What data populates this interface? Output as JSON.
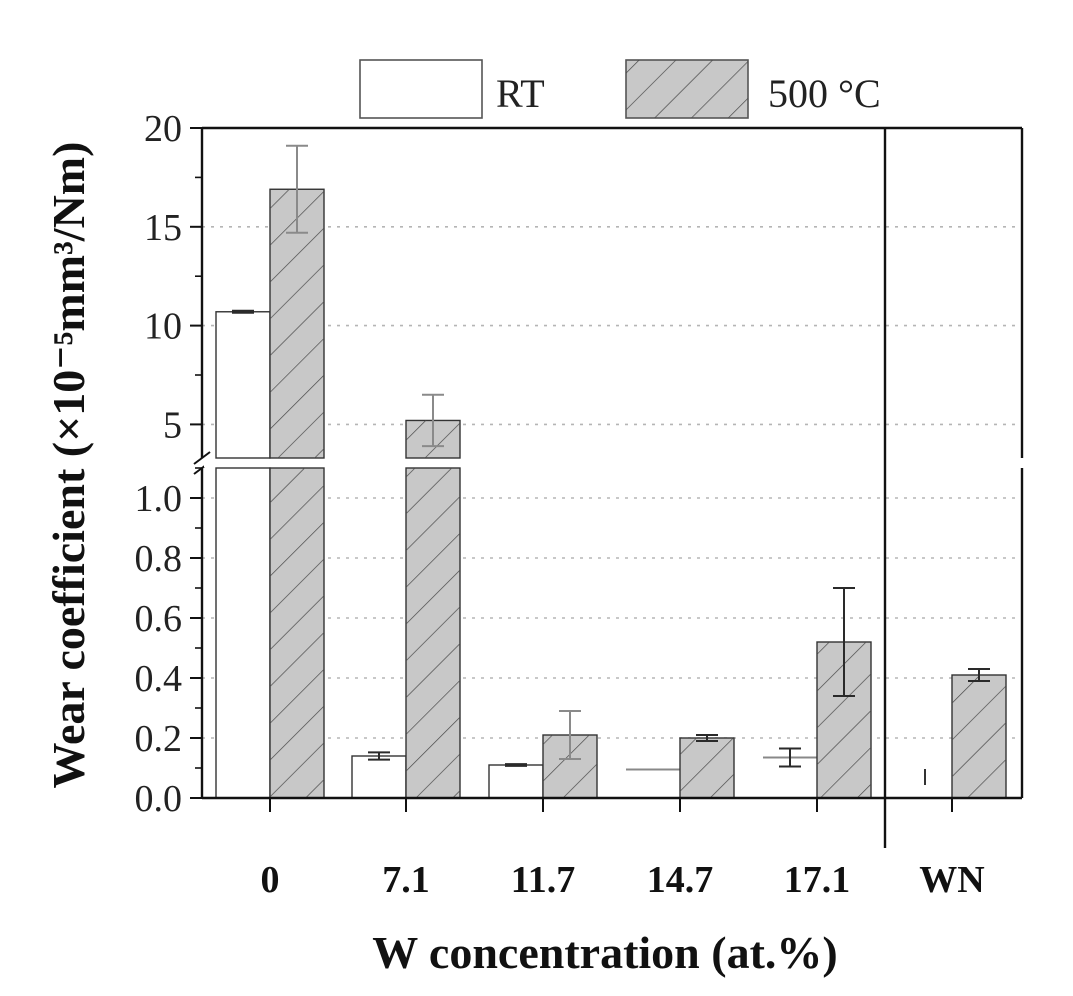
{
  "chart_data": {
    "type": "bar",
    "title": "",
    "xlabel": "W concentration (at.%)",
    "ylabel": "Wear coefficient (×10⁻⁵mm³/Nm)",
    "categories": [
      "0",
      "7.1",
      "11.7",
      "14.7",
      "17.1",
      "WN"
    ],
    "series": [
      {
        "name": "RT",
        "fill": "#ffffff",
        "hatch": false,
        "values": [
          10.7,
          0.14,
          0.11,
          0.095,
          0.135,
          0.07
        ],
        "errors": [
          0.05,
          0.012,
          0.003,
          0.0,
          0.03,
          0.03
        ]
      },
      {
        "name": "500 °C",
        "fill": "#c8c8c8",
        "hatch": true,
        "values": [
          16.9,
          5.2,
          0.21,
          0.2,
          0.52,
          0.41
        ],
        "errors": [
          2.2,
          1.3,
          0.08,
          0.01,
          0.18,
          0.02
        ]
      }
    ],
    "axis_break": {
      "lower_range": [
        0,
        1.1
      ],
      "upper_range": [
        3.3,
        20
      ],
      "lower_ticks": [
        "0.0",
        "0.2",
        "0.4",
        "0.6",
        "0.8",
        "1.0"
      ],
      "upper_ticks": [
        "5",
        "10",
        "15",
        "20"
      ]
    },
    "grid": true,
    "legend_position": "top"
  }
}
